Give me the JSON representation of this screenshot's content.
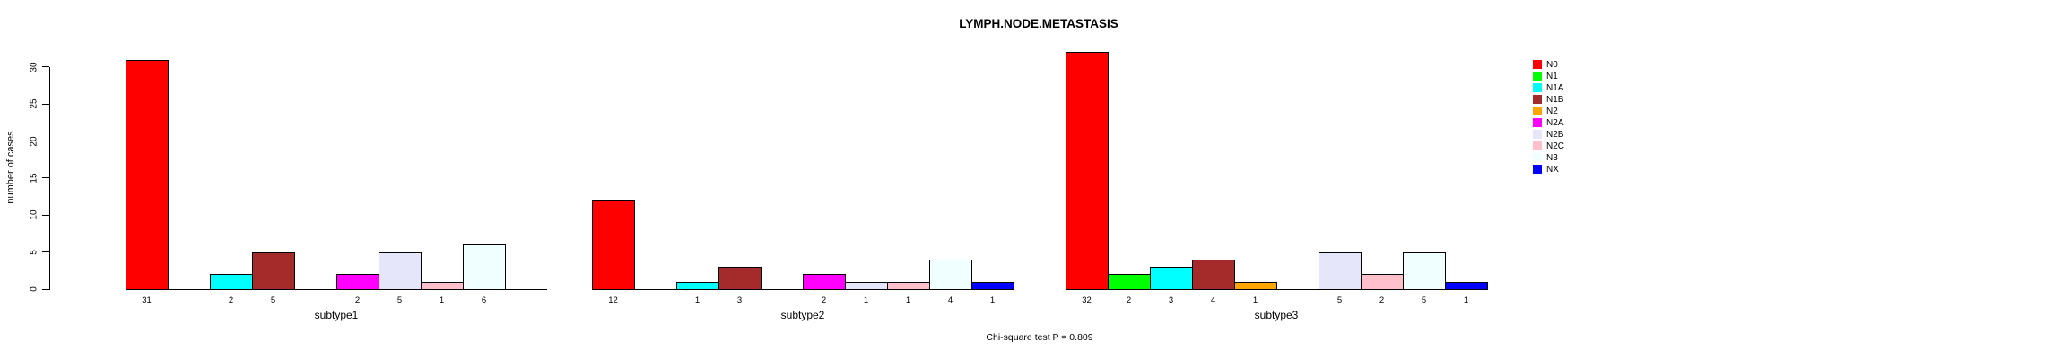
{
  "title": "LYMPH.NODE.METASTASIS",
  "caption": "Chi-square test P = 0.809",
  "y_axis": {
    "label": "number of cases",
    "ticks": [
      0,
      5,
      10,
      15,
      20,
      25,
      30
    ]
  },
  "chart_data": {
    "type": "bar",
    "title": "LYMPH.NODE.METASTASIS",
    "ylabel": "number of cases",
    "ylim": [
      0,
      30
    ],
    "grid": false,
    "legend_position": "right",
    "categories": [
      "N0",
      "N1",
      "N1A",
      "N1B",
      "N2",
      "N2A",
      "N2B",
      "N2C",
      "N3",
      "NX"
    ],
    "colors": [
      "#FF0000",
      "#00FF00",
      "#00FFFF",
      "#A52A2A",
      "#FFA500",
      "#FF00FF",
      "#E6E6FA",
      "#FFC0CB",
      "#F0FFFF",
      "#0000FF"
    ],
    "groups": [
      {
        "label": "subtype1",
        "values": [
          31,
          0,
          2,
          5,
          0,
          2,
          5,
          1,
          6,
          0
        ]
      },
      {
        "label": "subtype2",
        "values": [
          12,
          0,
          1,
          3,
          0,
          2,
          1,
          1,
          4,
          1
        ]
      },
      {
        "label": "subtype3",
        "values": [
          32,
          2,
          3,
          4,
          1,
          0,
          5,
          2,
          5,
          1
        ]
      }
    ],
    "annotation": "Chi-square test P = 0.809"
  }
}
